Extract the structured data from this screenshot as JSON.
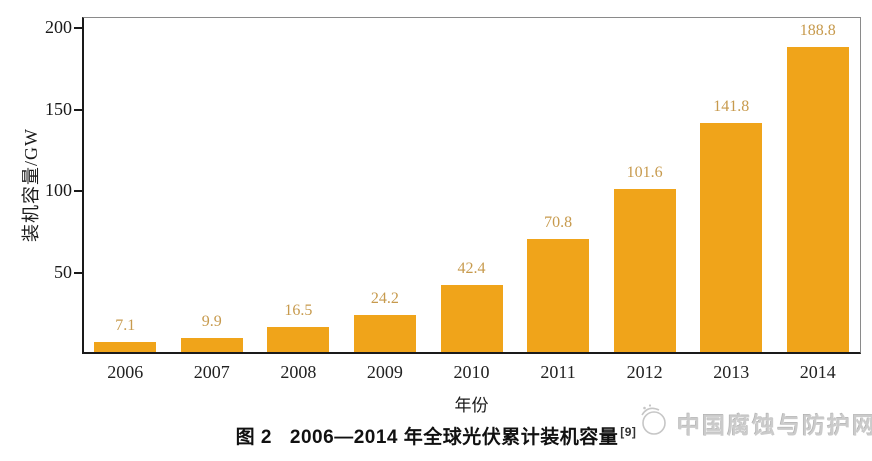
{
  "figure": {
    "caption_prefix": "图 2",
    "caption_text": "2006—2014 年全球光伏累计装机容量",
    "caption_ref": "[9]",
    "watermark_text": "中国腐蚀与防护网"
  },
  "chart_data": {
    "type": "bar",
    "title": "图 2 2006—2014 年全球光伏累计装机容量",
    "categories": [
      "2006",
      "2007",
      "2008",
      "2009",
      "2010",
      "2011",
      "2012",
      "2013",
      "2014"
    ],
    "values": [
      7.1,
      9.9,
      16.5,
      24.2,
      42.4,
      70.8,
      101.6,
      141.8,
      188.8
    ],
    "xlabel": "年份",
    "ylabel": "装机容量/GW",
    "ylim": [
      0,
      207
    ],
    "yticks": [
      50,
      100,
      150,
      200
    ],
    "grid": false,
    "legend": "none",
    "bar_color": "#F0A41A",
    "value_label_color": "#C79A4D",
    "axis_color": "#1a1a1a",
    "box_border_color": "#8a8a8a"
  }
}
